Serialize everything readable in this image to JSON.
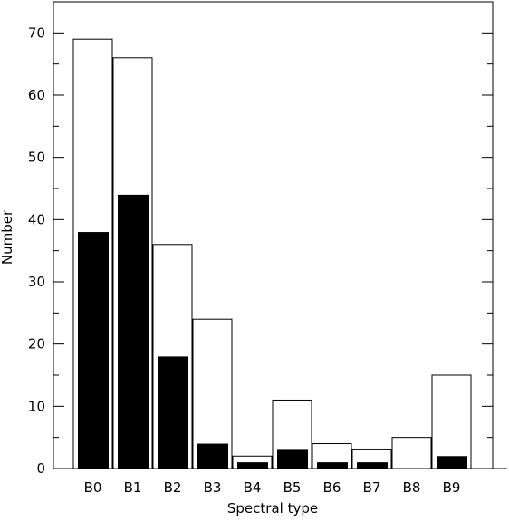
{
  "chart_data": {
    "type": "bar",
    "categories": [
      "B0",
      "B1",
      "B2",
      "B3",
      "B4",
      "B5",
      "B6",
      "B7",
      "B8",
      "B9"
    ],
    "series": [
      {
        "values": [
          69,
          66,
          36,
          24,
          2,
          11,
          4,
          3,
          5,
          15
        ],
        "style": "outline"
      },
      {
        "values": [
          38,
          44,
          18,
          4,
          1,
          3,
          1,
          1,
          0,
          2
        ],
        "style": "filled"
      }
    ],
    "title": "",
    "xlabel": "Spectral type",
    "ylabel": "Number",
    "ylim": [
      0,
      75
    ],
    "yticks": [
      0,
      10,
      20,
      30,
      40,
      50,
      60,
      70
    ],
    "grid": false,
    "colors": {
      "axis": "#000000",
      "filled_bar": "#000000",
      "outline_bar_fill": "#ffffff"
    }
  }
}
